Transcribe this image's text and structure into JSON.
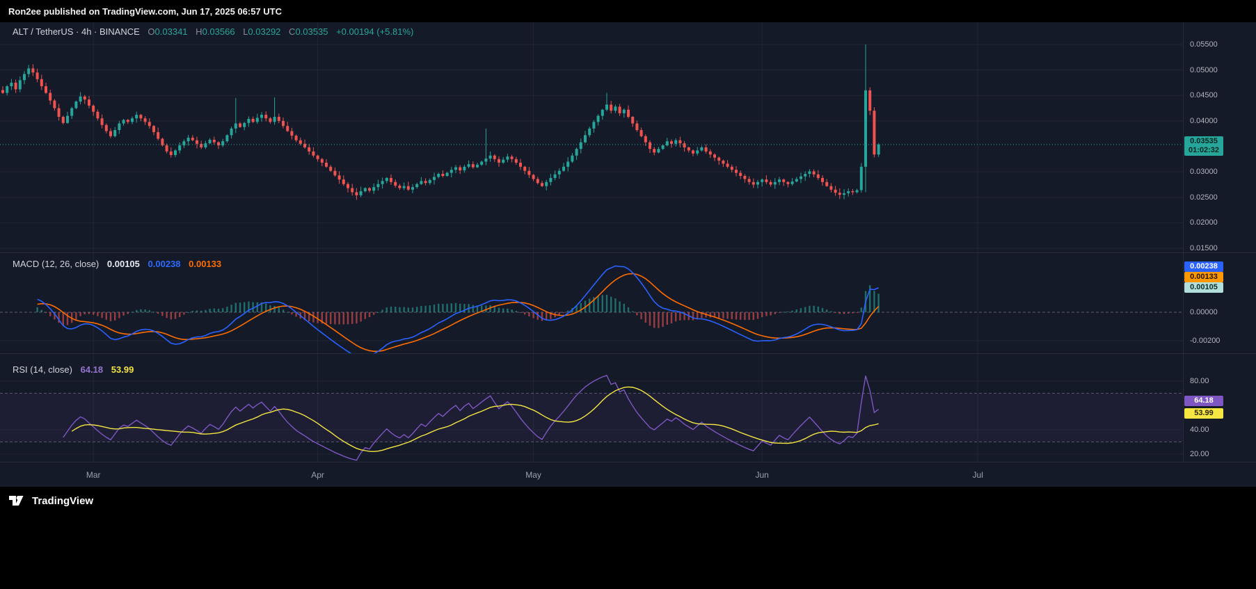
{
  "page": {
    "top_bar": "Ron2ee published on TradingView.com, Jun 17, 2025 06:57 UTC",
    "brand": "TradingView"
  },
  "header": {
    "title": "ALT / TetherUS · 4h · BINANCE",
    "o_label": "O",
    "o_value": "0.03341",
    "h_label": "H",
    "h_value": "0.03566",
    "l_label": "L",
    "l_value": "0.03292",
    "c_label": "C",
    "c_value": "0.03535",
    "change": "+0.00194 (+5.81%)"
  },
  "price_axis": {
    "ticks": [
      {
        "text": "0.05500",
        "value": 0.055
      },
      {
        "text": "0.05000",
        "value": 0.05
      },
      {
        "text": "0.04500",
        "value": 0.045
      },
      {
        "text": "0.04000",
        "value": 0.04
      },
      {
        "text": "0.03000",
        "value": 0.03
      },
      {
        "text": "0.02500",
        "value": 0.025
      },
      {
        "text": "0.02000",
        "value": 0.02
      },
      {
        "text": "0.01500",
        "value": 0.015
      }
    ],
    "badge": {
      "price": "0.03535",
      "countdown": "01:02:32",
      "value": 0.03535
    }
  },
  "macd": {
    "title": "MACD (12, 26, close)",
    "hist_value": "0.00105",
    "macd_value": "0.00238",
    "signal_value": "0.00133",
    "axis_ticks": [
      {
        "text": "0.00000",
        "value": 0
      },
      {
        "text": "-0.00200",
        "value": -0.002
      }
    ],
    "badges": {
      "macd": "0.00238",
      "signal": "0.00133",
      "hist": "0.00105"
    }
  },
  "rsi": {
    "title": "RSI (14, close)",
    "rsi_value": "64.18",
    "ma_value": "53.99",
    "axis_ticks": [
      {
        "text": "80.00",
        "value": 80
      },
      {
        "text": "40.00",
        "value": 40
      },
      {
        "text": "20.00",
        "value": 20
      }
    ],
    "bands": [
      70,
      30
    ],
    "badges": {
      "rsi": "64.18",
      "ma": "53.99"
    }
  },
  "time_axis": {
    "labels": [
      {
        "text": "Mar",
        "index": 21
      },
      {
        "text": "Apr",
        "index": 73
      },
      {
        "text": "May",
        "index": 123
      },
      {
        "text": "Jun",
        "index": 176
      },
      {
        "text": "Jul",
        "index": 226
      }
    ]
  },
  "chart_data": [
    {
      "type": "candlestick",
      "title": "ALT / TetherUS · 4h · BINANCE",
      "exchange": "BINANCE",
      "interval": "4h",
      "last_candle": {
        "open": 0.03341,
        "high": 0.03566,
        "low": 0.03292,
        "close": 0.03535,
        "change": "+0.00194",
        "change_pct": "+5.81%"
      },
      "current_price": 0.03535,
      "ylim": [
        0.0135,
        0.0585
      ],
      "colors": {
        "up": "#26a69a",
        "down": "#ef5350"
      },
      "closes": [
        0.0455,
        0.0468,
        0.0475,
        0.0462,
        0.048,
        0.0492,
        0.0503,
        0.0495,
        0.0482,
        0.0468,
        0.0455,
        0.044,
        0.0425,
        0.0408,
        0.0396,
        0.041,
        0.0425,
        0.0438,
        0.0448,
        0.0442,
        0.043,
        0.0418,
        0.0405,
        0.0392,
        0.038,
        0.037,
        0.0382,
        0.0395,
        0.0402,
        0.0398,
        0.0405,
        0.0412,
        0.0405,
        0.0398,
        0.039,
        0.0378,
        0.0365,
        0.0352,
        0.034,
        0.0333,
        0.0342,
        0.0352,
        0.036,
        0.0367,
        0.0362,
        0.0355,
        0.0348,
        0.0356,
        0.0363,
        0.0358,
        0.0352,
        0.036,
        0.0372,
        0.0385,
        0.0395,
        0.0388,
        0.0396,
        0.0404,
        0.0398,
        0.0406,
        0.0412,
        0.0405,
        0.0398,
        0.0408,
        0.04,
        0.039,
        0.038,
        0.0371,
        0.0362,
        0.0355,
        0.0348,
        0.034,
        0.0332,
        0.0325,
        0.0318,
        0.031,
        0.0302,
        0.0293,
        0.0285,
        0.0276,
        0.0268,
        0.026,
        0.0254,
        0.0262,
        0.0268,
        0.0263,
        0.027,
        0.0276,
        0.0282,
        0.0288,
        0.028,
        0.0273,
        0.0268,
        0.0272,
        0.0265,
        0.027,
        0.0276,
        0.0282,
        0.0278,
        0.0284,
        0.029,
        0.0296,
        0.0292,
        0.0298,
        0.0304,
        0.0309,
        0.0303,
        0.031,
        0.0315,
        0.0309,
        0.0314,
        0.032,
        0.0326,
        0.0332,
        0.0325,
        0.0318,
        0.0324,
        0.033,
        0.0325,
        0.0318,
        0.031,
        0.0302,
        0.0294,
        0.0286,
        0.0278,
        0.0272,
        0.028,
        0.0288,
        0.0295,
        0.0302,
        0.031,
        0.032,
        0.0332,
        0.0345,
        0.0358,
        0.0372,
        0.0385,
        0.0398,
        0.041,
        0.0422,
        0.0432,
        0.042,
        0.0428,
        0.0415,
        0.0422,
        0.0408,
        0.0395,
        0.0382,
        0.037,
        0.0358,
        0.0345,
        0.0338,
        0.0345,
        0.0352,
        0.036,
        0.0355,
        0.0362,
        0.0356,
        0.0348,
        0.0342,
        0.0336,
        0.0342,
        0.0348,
        0.034,
        0.0334,
        0.0328,
        0.0322,
        0.0316,
        0.031,
        0.0304,
        0.0298,
        0.0292,
        0.0286,
        0.028,
        0.0275,
        0.028,
        0.0285,
        0.028,
        0.0275,
        0.028,
        0.0285,
        0.028,
        0.0276,
        0.0281,
        0.0286,
        0.0291,
        0.0296,
        0.0301,
        0.0295,
        0.0288,
        0.028,
        0.0272,
        0.0265,
        0.0259,
        0.0255,
        0.0258,
        0.0262,
        0.026,
        0.0264,
        0.031,
        0.046,
        0.042,
        0.0334,
        0.03535
      ],
      "wick_overrides": {
        "6": {
          "h": 0.051
        },
        "54": {
          "h": 0.0445
        },
        "63": {
          "h": 0.0446
        },
        "82": {
          "l": 0.0245
        },
        "112": {
          "h": 0.0385
        },
        "140": {
          "h": 0.0455
        },
        "200": {
          "h": 0.055,
          "l": 0.026
        },
        "203": {
          "o": 0.03341,
          "h": 0.03566,
          "l": 0.03292,
          "c": 0.03535
        }
      }
    },
    {
      "type": "macd",
      "title": "MACD (12, 26, close)",
      "params": {
        "fast": 12,
        "slow": 26,
        "signal": 9
      },
      "last": {
        "macd": 0.00238,
        "signal": 0.00133,
        "histogram": 0.00105
      },
      "y_ticks": [
        0,
        -0.002
      ],
      "colors": {
        "macd": "#2962ff",
        "signal": "#ff6d00",
        "hist_pos": "#26a69a",
        "hist_neg": "#ef5350"
      },
      "source": "close series of candlestick pane"
    },
    {
      "type": "rsi",
      "title": "RSI (14, close)",
      "params": {
        "length": 14,
        "ma_length": 14
      },
      "last": {
        "rsi": 64.18,
        "ma": 53.99
      },
      "y_ticks": [
        80,
        40,
        20
      ],
      "bands": [
        70,
        30
      ],
      "colors": {
        "rsi": "#7e57c2",
        "ma": "#f5e642"
      },
      "source": "close series of candlestick pane"
    }
  ]
}
